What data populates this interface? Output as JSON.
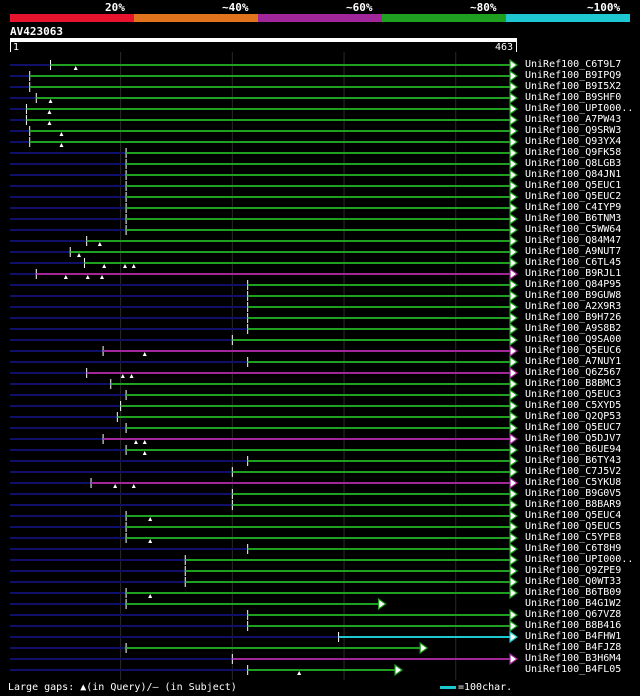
{
  "legend": {
    "segments": [
      {
        "label": "20%",
        "color": "#e8142e"
      },
      {
        "label": "~40%",
        "color": "#e2741e"
      },
      {
        "label": "~60%",
        "color": "#a0269a"
      },
      {
        "label": "~80%",
        "color": "#20a020"
      },
      {
        "label": "~100%",
        "color": "#1ec8d2"
      }
    ]
  },
  "query": {
    "id": "AV423063",
    "start_label": "1",
    "end_label": "463",
    "length": 463
  },
  "colors": {
    "background": "#000000",
    "unaligned": "#10106a",
    "gap_marker": "#ffffff",
    "scale_line": "#1ec8d2"
  },
  "footer": {
    "gaps_text": "Large gaps: ▲(in Query)/— (in Subject)",
    "scale_text": "=100char."
  },
  "chart_data": {
    "type": "alignment-overview",
    "x_axis": {
      "min": 1,
      "max": 463
    },
    "gridlines": [
      102,
      204,
      306,
      408
    ],
    "hits": [
      {
        "name": "UniRef100_C6T9L7",
        "start": 38,
        "end": 463,
        "color": "#20a020",
        "arrow": true,
        "gaps": [
          61
        ]
      },
      {
        "name": "UniRef100_B9IPQ9",
        "start": 19,
        "end": 463,
        "color": "#20a020",
        "arrow": true,
        "gaps": []
      },
      {
        "name": "UniRef100_B9I5X2",
        "start": 19,
        "end": 463,
        "color": "#20a020",
        "arrow": true,
        "gaps": []
      },
      {
        "name": "UniRef100_B9SHF0",
        "start": 25,
        "end": 463,
        "color": "#20a020",
        "arrow": true,
        "gaps": [
          38
        ]
      },
      {
        "name": "UniRef100_UPI000..",
        "start": 16,
        "end": 463,
        "color": "#20a020",
        "arrow": true,
        "gaps": [
          37
        ]
      },
      {
        "name": "UniRef100_A7PW43",
        "start": 16,
        "end": 463,
        "color": "#20a020",
        "arrow": true,
        "gaps": [
          37
        ]
      },
      {
        "name": "UniRef100_Q9SRW3",
        "start": 19,
        "end": 463,
        "color": "#20a020",
        "arrow": true,
        "gaps": [
          48
        ]
      },
      {
        "name": "UniRef100_Q93YX4",
        "start": 19,
        "end": 463,
        "color": "#20a020",
        "arrow": true,
        "gaps": [
          48
        ]
      },
      {
        "name": "UniRef100_Q9FK58",
        "start": 107,
        "end": 463,
        "color": "#20a020",
        "arrow": true,
        "gaps": []
      },
      {
        "name": "UniRef100_Q8LGB3",
        "start": 107,
        "end": 463,
        "color": "#20a020",
        "arrow": true,
        "gaps": []
      },
      {
        "name": "UniRef100_Q84JN1",
        "start": 107,
        "end": 463,
        "color": "#20a020",
        "arrow": true,
        "gaps": []
      },
      {
        "name": "UniRef100_Q5EUC1",
        "start": 107,
        "end": 463,
        "color": "#20a020",
        "arrow": true,
        "gaps": []
      },
      {
        "name": "UniRef100_Q5EUC2",
        "start": 107,
        "end": 463,
        "color": "#20a020",
        "arrow": true,
        "gaps": []
      },
      {
        "name": "UniRef100_C4IYP9",
        "start": 107,
        "end": 463,
        "color": "#20a020",
        "arrow": true,
        "gaps": []
      },
      {
        "name": "UniRef100_B6TNM3",
        "start": 107,
        "end": 463,
        "color": "#20a020",
        "arrow": true,
        "gaps": []
      },
      {
        "name": "UniRef100_C5WW64",
        "start": 107,
        "end": 463,
        "color": "#20a020",
        "arrow": true,
        "gaps": []
      },
      {
        "name": "UniRef100_Q84M47",
        "start": 71,
        "end": 463,
        "color": "#20a020",
        "arrow": true,
        "gaps": [
          83
        ]
      },
      {
        "name": "UniRef100_A9NUT7",
        "start": 56,
        "end": 463,
        "color": "#20a020",
        "arrow": true,
        "gaps": [
          64
        ]
      },
      {
        "name": "UniRef100_C6TL45",
        "start": 69,
        "end": 463,
        "color": "#20a020",
        "arrow": true,
        "gaps": [
          87,
          106,
          114
        ]
      },
      {
        "name": "UniRef100_B9RJL1",
        "start": 25,
        "end": 463,
        "color": "#a0269a",
        "arrow": true,
        "gaps": [
          52,
          72,
          85
        ]
      },
      {
        "name": "UniRef100_Q84P95",
        "start": 218,
        "end": 463,
        "color": "#20a020",
        "arrow": true,
        "gaps": []
      },
      {
        "name": "UniRef100_B9GUW8",
        "start": 218,
        "end": 463,
        "color": "#20a020",
        "arrow": true,
        "gaps": []
      },
      {
        "name": "UniRef100_A2X9R3",
        "start": 218,
        "end": 463,
        "color": "#20a020",
        "arrow": true,
        "gaps": []
      },
      {
        "name": "UniRef100_B9H726",
        "start": 218,
        "end": 463,
        "color": "#20a020",
        "arrow": true,
        "gaps": []
      },
      {
        "name": "UniRef100_A9S8B2",
        "start": 218,
        "end": 463,
        "color": "#20a020",
        "arrow": true,
        "gaps": []
      },
      {
        "name": "UniRef100_Q9SA00",
        "start": 204,
        "end": 463,
        "color": "#20a020",
        "arrow": true,
        "gaps": []
      },
      {
        "name": "UniRef100_Q5EUC6",
        "start": 86,
        "end": 463,
        "color": "#a0269a",
        "arrow": true,
        "gaps": [
          124
        ]
      },
      {
        "name": "UniRef100_A7NUY1",
        "start": 218,
        "end": 463,
        "color": "#20a020",
        "arrow": true,
        "gaps": []
      },
      {
        "name": "UniRef100_Q6Z567",
        "start": 71,
        "end": 463,
        "color": "#a0269a",
        "arrow": true,
        "gaps": [
          104,
          112
        ]
      },
      {
        "name": "UniRef100_B8BMC3",
        "start": 93,
        "end": 463,
        "color": "#20a020",
        "arrow": true,
        "gaps": []
      },
      {
        "name": "UniRef100_Q5EUC3",
        "start": 107,
        "end": 463,
        "color": "#20a020",
        "arrow": true,
        "gaps": []
      },
      {
        "name": "UniRef100_C5XYD5",
        "start": 102,
        "end": 463,
        "color": "#20a020",
        "arrow": true,
        "gaps": []
      },
      {
        "name": "UniRef100_Q2QP53",
        "start": 99,
        "end": 463,
        "color": "#20a020",
        "arrow": true,
        "gaps": []
      },
      {
        "name": "UniRef100_Q5EUC7",
        "start": 107,
        "end": 463,
        "color": "#20a020",
        "arrow": true,
        "gaps": []
      },
      {
        "name": "UniRef100_Q5DJV7",
        "start": 86,
        "end": 463,
        "color": "#a0269a",
        "arrow": true,
        "gaps": [
          116,
          124
        ]
      },
      {
        "name": "UniRef100_B6UE94",
        "start": 107,
        "end": 463,
        "color": "#20a020",
        "arrow": true,
        "gaps": [
          124
        ]
      },
      {
        "name": "UniRef100_B6TY43",
        "start": 218,
        "end": 463,
        "color": "#20a020",
        "arrow": true,
        "gaps": []
      },
      {
        "name": "UniRef100_C7J5V2",
        "start": 204,
        "end": 463,
        "color": "#20a020",
        "arrow": true,
        "gaps": []
      },
      {
        "name": "UniRef100_C5YKU8",
        "start": 75,
        "end": 463,
        "color": "#a0269a",
        "arrow": true,
        "gaps": [
          97,
          114
        ]
      },
      {
        "name": "UniRef100_B9G0V5",
        "start": 204,
        "end": 463,
        "color": "#20a020",
        "arrow": true,
        "gaps": []
      },
      {
        "name": "UniRef100_B8BAR9",
        "start": 204,
        "end": 463,
        "color": "#20a020",
        "arrow": true,
        "gaps": []
      },
      {
        "name": "UniRef100_Q5EUC4",
        "start": 107,
        "end": 463,
        "color": "#20a020",
        "arrow": true,
        "gaps": [
          129
        ]
      },
      {
        "name": "UniRef100_Q5EUC5",
        "start": 107,
        "end": 463,
        "color": "#20a020",
        "arrow": true,
        "gaps": []
      },
      {
        "name": "UniRef100_C5YPE8",
        "start": 107,
        "end": 463,
        "color": "#20a020",
        "arrow": true,
        "gaps": [
          129
        ]
      },
      {
        "name": "UniRef100_C6T8H9",
        "start": 218,
        "end": 463,
        "color": "#20a020",
        "arrow": true,
        "gaps": []
      },
      {
        "name": "UniRef100_UPI000..",
        "start": 161,
        "end": 463,
        "color": "#20a020",
        "arrow": true,
        "gaps": []
      },
      {
        "name": "UniRef100_Q9ZPE9",
        "start": 161,
        "end": 463,
        "color": "#20a020",
        "arrow": true,
        "gaps": []
      },
      {
        "name": "UniRef100_Q0WT33",
        "start": 161,
        "end": 463,
        "color": "#20a020",
        "arrow": true,
        "gaps": []
      },
      {
        "name": "UniRef100_B6TB09",
        "start": 107,
        "end": 463,
        "color": "#20a020",
        "arrow": true,
        "gaps": [
          129
        ]
      },
      {
        "name": "UniRef100_B4G1W2",
        "start": 107,
        "end": 343,
        "color": "#20a020",
        "arrow": true,
        "gaps": []
      },
      {
        "name": "UniRef100_Q67VZ8",
        "start": 218,
        "end": 463,
        "color": "#20a020",
        "arrow": true,
        "gaps": []
      },
      {
        "name": "UniRef100_B8B416",
        "start": 218,
        "end": 463,
        "color": "#20a020",
        "arrow": true,
        "gaps": []
      },
      {
        "name": "UniRef100_B4FHW1",
        "start": 301,
        "end": 463,
        "color": "#1ec8d2",
        "arrow": true,
        "gaps": []
      },
      {
        "name": "UniRef100_B4FJZ8",
        "start": 107,
        "end": 381,
        "color": "#20a020",
        "arrow": true,
        "gaps": []
      },
      {
        "name": "UniRef100_B3H6M4",
        "start": 204,
        "end": 463,
        "color": "#a0269a",
        "arrow": true,
        "gaps": []
      },
      {
        "name": "UniRef100_B4FL05",
        "start": 218,
        "end": 358,
        "color": "#20a020",
        "arrow": true,
        "gaps": [
          265
        ]
      }
    ]
  }
}
